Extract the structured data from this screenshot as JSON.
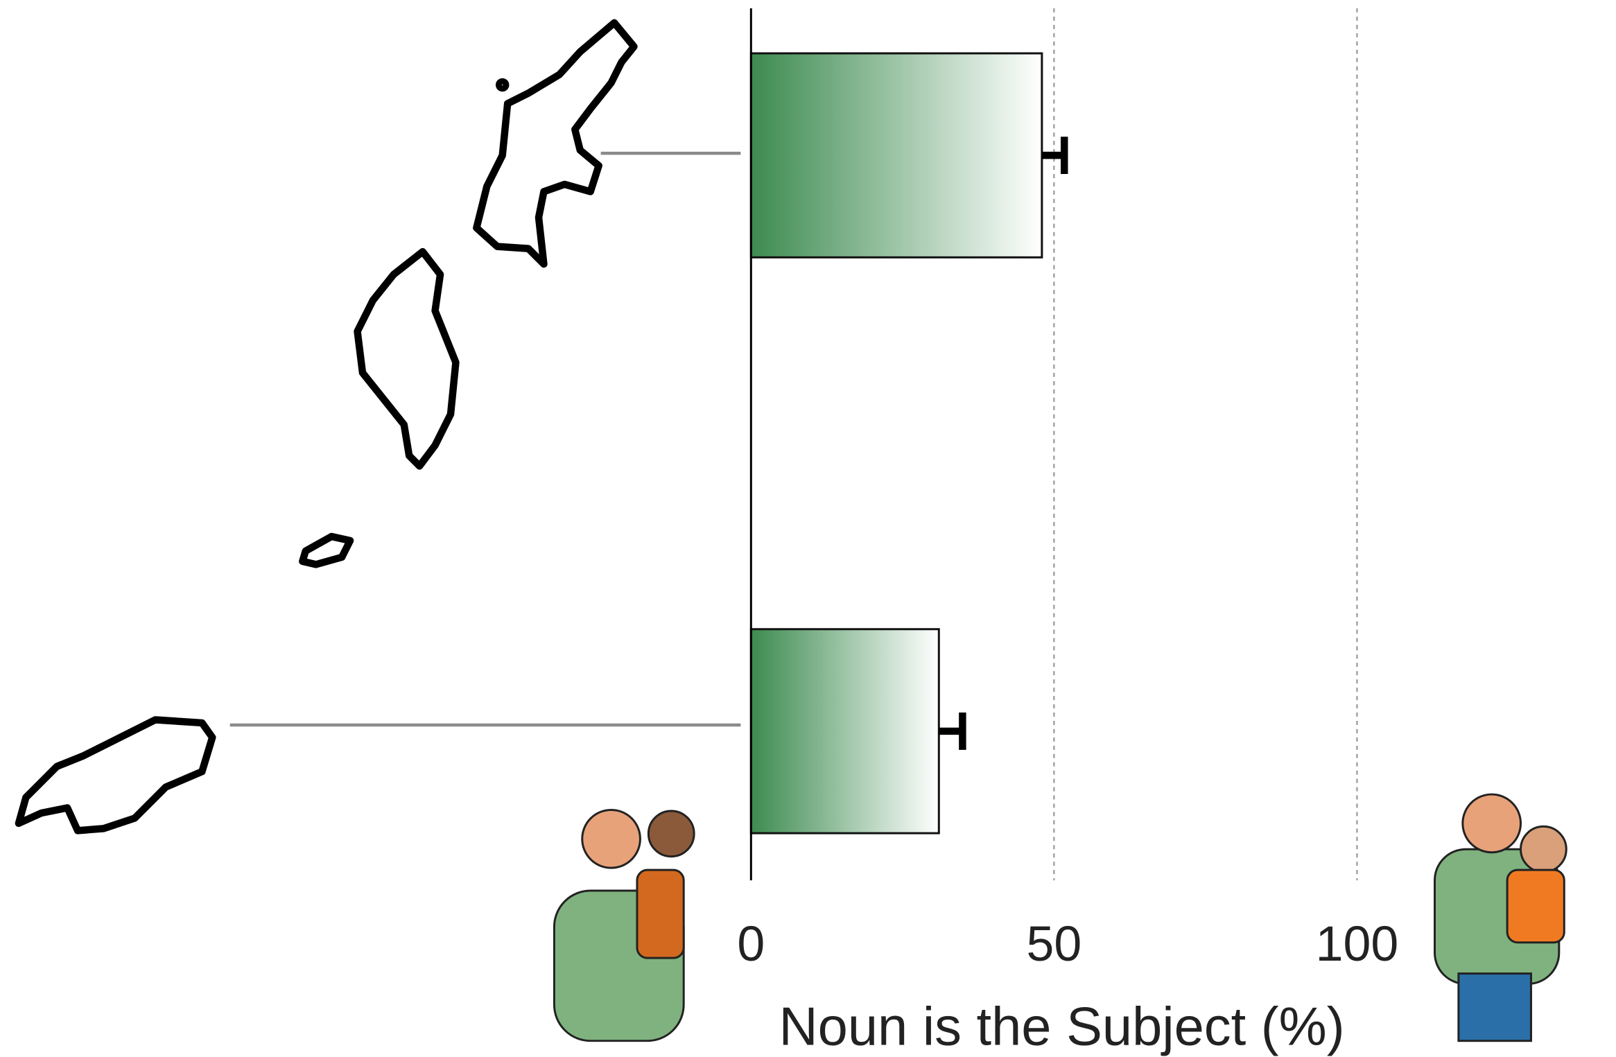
{
  "chart_data": {
    "type": "bar",
    "orientation": "horizontal",
    "xlabel": "Noun is the Subject (%)",
    "categories": [
      null,
      null
    ],
    "values": [
      48,
      31
    ],
    "errors": [
      3.7,
      3.9
    ],
    "color": "#3d8b50",
    "xlim": [
      0,
      100
    ],
    "xticks": [
      0,
      50,
      100
    ],
    "grid": true
  }
}
